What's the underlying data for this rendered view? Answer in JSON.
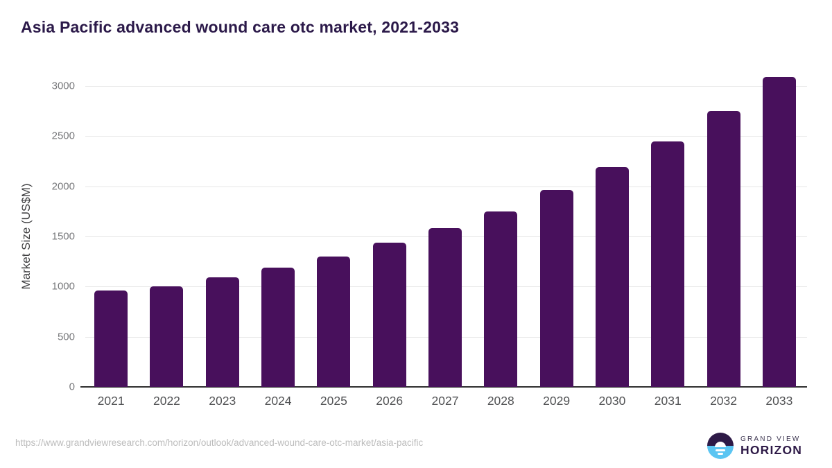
{
  "header": {
    "title": "Asia Pacific advanced wound care otc market, 2021-2033",
    "title_color": "#2b1949"
  },
  "chart_data": {
    "type": "bar",
    "title": "Asia Pacific advanced wound care otc market, 2021-2033",
    "categories": [
      "2021",
      "2022",
      "2023",
      "2024",
      "2025",
      "2026",
      "2027",
      "2028",
      "2029",
      "2030",
      "2031",
      "2032",
      "2033"
    ],
    "values": [
      960,
      1000,
      1090,
      1190,
      1300,
      1440,
      1580,
      1750,
      1960,
      2190,
      2450,
      2750,
      3090
    ],
    "xlabel": "",
    "ylabel": "Market Size (US$M)",
    "yticks": [
      0,
      500,
      1000,
      1500,
      2000,
      2500,
      3000
    ],
    "ylim": [
      0,
      3100
    ],
    "grid": true,
    "legend": false,
    "bar_color": "#48105c"
  },
  "footer": {
    "url": "https://www.grandviewresearch.com/horizon/outlook/advanced-wound-care-otc-market/asia-pacific",
    "logo": {
      "top_text": "GRAND VIEW",
      "bottom_text": "HORIZON",
      "circle_top_color": "#2e1a47",
      "circle_bottom_color": "#5bc5f2"
    }
  }
}
